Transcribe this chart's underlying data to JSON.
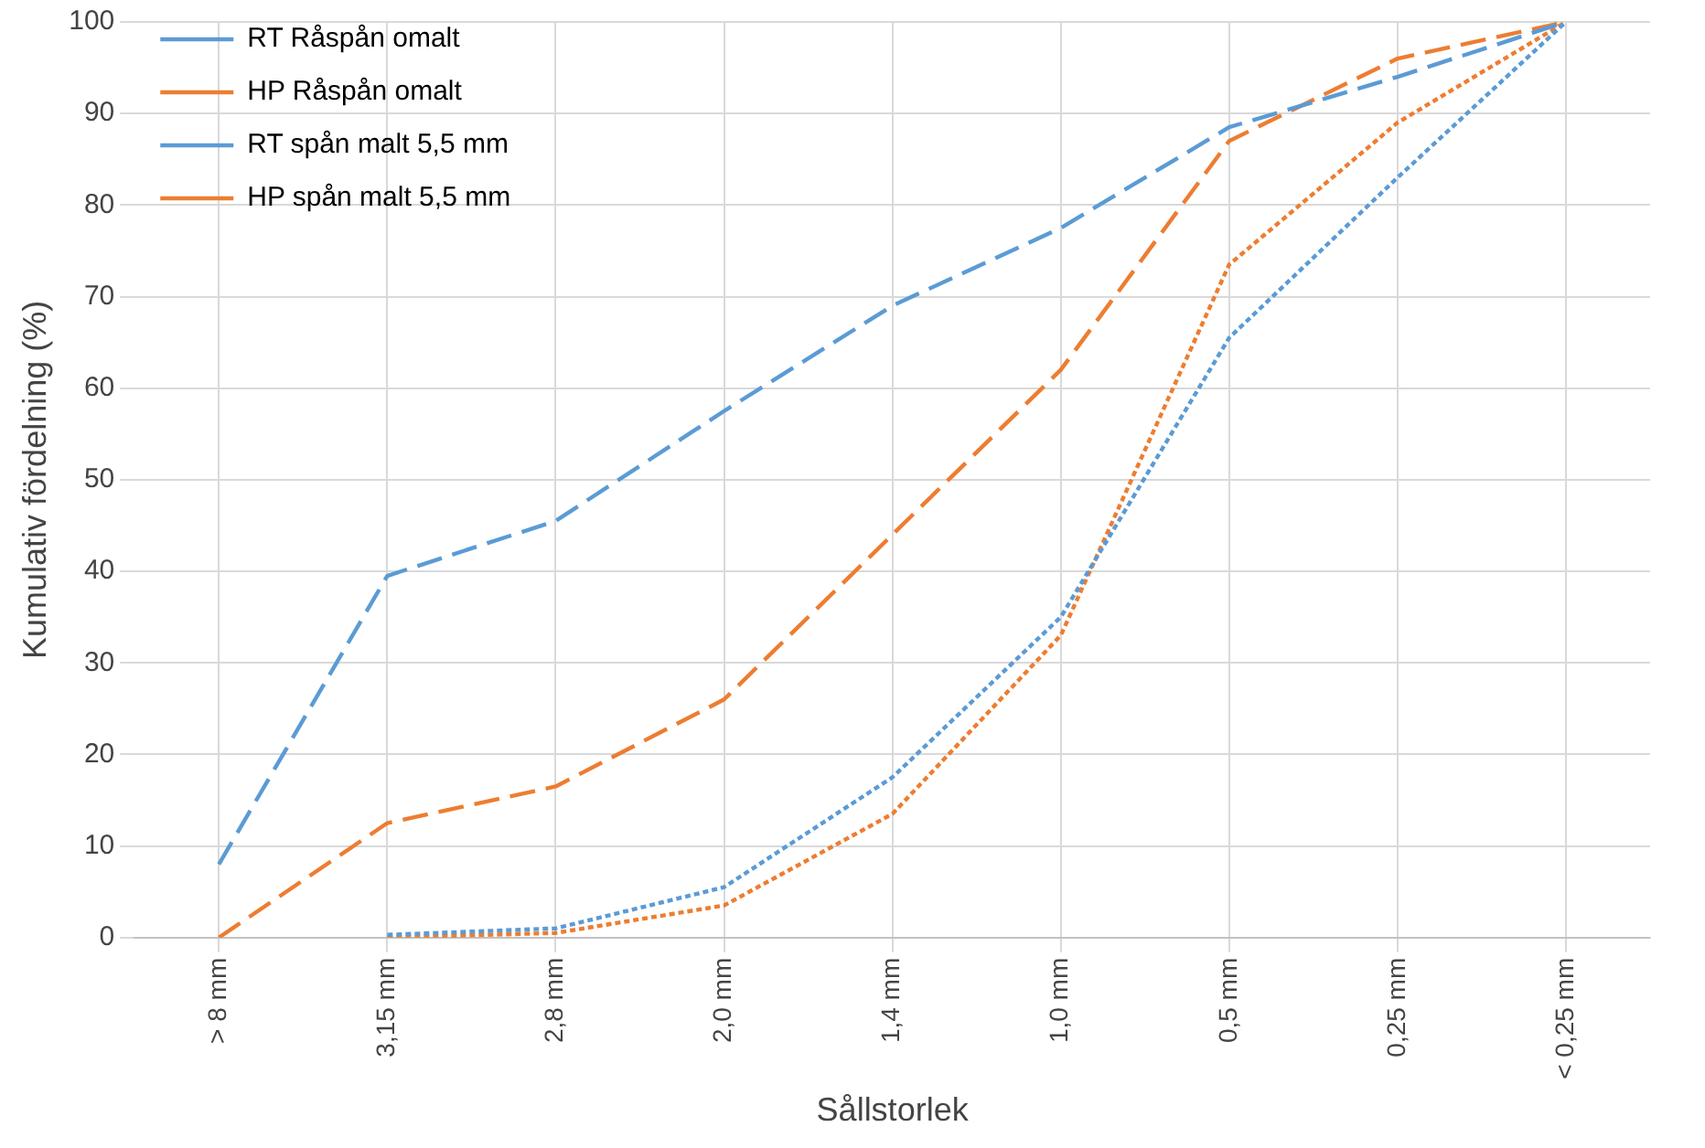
{
  "chart_data": {
    "type": "line",
    "xlabel": "Sållstorlek",
    "ylabel": "Kumulativ fördelning (%)",
    "categories": [
      "> 8 mm",
      "3,15 mm",
      "2,8 mm",
      "2,0 mm",
      "1,4 mm",
      "1,0 mm",
      "0,5 mm",
      "0,25 mm",
      "< 0,25 mm"
    ],
    "series": [
      {
        "name": "RT Råspån omalt",
        "color": "#5b9bd5",
        "line_style": "dashed",
        "values": [
          8,
          39.5,
          45.5,
          57.5,
          69,
          77.5,
          88.5,
          94,
          100
        ]
      },
      {
        "name": "HP Råspån omalt",
        "color": "#ed7d31",
        "line_style": "dashed",
        "values": [
          0,
          12.5,
          16.5,
          26,
          44,
          62,
          87,
          96,
          100
        ]
      },
      {
        "name": "RT spån malt 5,5 mm",
        "color": "#5b9bd5",
        "line_style": "dotted",
        "values": [
          null,
          0.3,
          1,
          5.5,
          17.5,
          35,
          65.5,
          83,
          100
        ]
      },
      {
        "name": "HP spån malt 5,5 mm",
        "color": "#ed7d31",
        "line_style": "dotted",
        "values": [
          null,
          0,
          0.5,
          3.5,
          13.5,
          33,
          73.5,
          89,
          100
        ]
      }
    ],
    "ylim": [
      0,
      100
    ],
    "yticks": [
      0,
      10,
      20,
      30,
      40,
      50,
      60,
      70,
      80,
      90,
      100
    ],
    "grid": true,
    "legend": "top left",
    "marker": "none"
  }
}
